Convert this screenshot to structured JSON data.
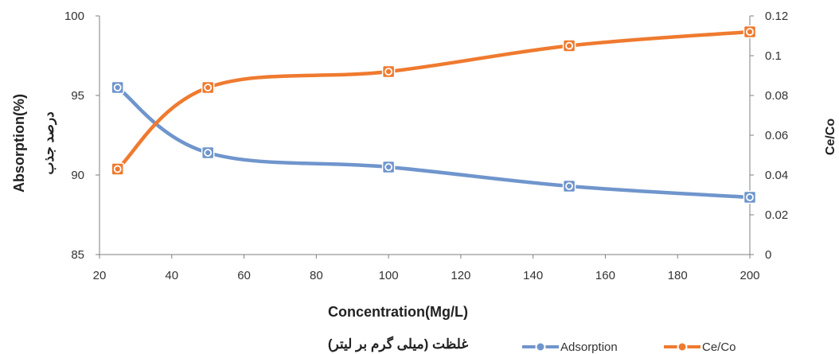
{
  "chart_data": {
    "type": "line",
    "x": [
      25,
      50,
      100,
      150,
      200
    ],
    "series": [
      {
        "name": "Adsorption",
        "axis": "left",
        "color": "#6f95cc",
        "values": [
          95.5,
          91.4,
          90.5,
          89.3,
          88.6
        ]
      },
      {
        "name": "Ce/Co",
        "axis": "right",
        "color": "#ef7a2f",
        "values": [
          0.043,
          0.084,
          0.092,
          0.105,
          0.112
        ]
      }
    ],
    "xlabel": "Concentration(Mg/L)",
    "xlabel_fa": "غلظت (میلی گرم بر لیتر)",
    "ylabel_left": "Absorption(%)",
    "ylabel_left_fa": "درصد جذب",
    "ylabel_right": "Ce/Co",
    "xlim": [
      20,
      200
    ],
    "xticks": [
      "20",
      "40",
      "60",
      "80",
      "100",
      "120",
      "140",
      "160",
      "180",
      "200"
    ],
    "ylim_left": [
      85,
      100
    ],
    "yticks_left": [
      "85",
      "90",
      "95",
      "100"
    ],
    "ylim_right": [
      0,
      0.12
    ],
    "yticks_right": [
      "0",
      "0.02",
      "0.04",
      "0.06",
      "0.08",
      "0.1",
      "0.12"
    ],
    "grid": false,
    "legend_position": "bottom-right"
  }
}
